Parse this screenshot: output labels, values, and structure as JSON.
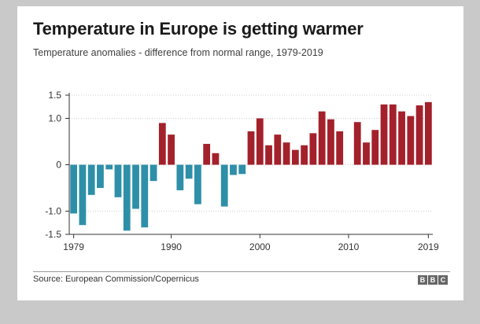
{
  "title": "Temperature in Europe is getting warmer",
  "subtitle": "Temperature anomalies - difference from normal range, 1979-2019",
  "source": "Source: European Commission/Copernicus",
  "logo": [
    "B",
    "B",
    "C"
  ],
  "colors": {
    "positive": "#a3212b",
    "negative": "#2e8fa8",
    "axis": "#333333",
    "grid": "#cccccc",
    "background": "#c9c9c9"
  },
  "chart_data": {
    "type": "bar",
    "title": "Temperature in Europe is getting warmer",
    "xlabel": "",
    "ylabel": "",
    "ylim": [
      -1.5,
      1.5
    ],
    "grid": "horizontal",
    "y_ticks": [
      1.5,
      1.0,
      0,
      -1.0,
      -1.5
    ],
    "y_tick_labels": [
      "1.5",
      "1.0",
      "0",
      "-1.0",
      "-1.5"
    ],
    "x_ticks": [
      1979,
      1990,
      2000,
      2010,
      2019
    ],
    "x_tick_labels": [
      "1979",
      "1990",
      "2000",
      "2010",
      "2019"
    ],
    "categories": [
      1979,
      1980,
      1981,
      1982,
      1983,
      1984,
      1985,
      1986,
      1987,
      1988,
      1989,
      1990,
      1991,
      1992,
      1993,
      1994,
      1995,
      1996,
      1997,
      1998,
      1999,
      2000,
      2001,
      2002,
      2003,
      2004,
      2005,
      2006,
      2007,
      2008,
      2009,
      2010,
      2011,
      2012,
      2013,
      2014,
      2015,
      2016,
      2017,
      2018,
      2019
    ],
    "values": [
      -1.05,
      -1.3,
      -0.65,
      -0.5,
      -0.1,
      -0.7,
      -1.42,
      -0.95,
      -1.35,
      -0.35,
      0.9,
      0.65,
      -0.55,
      -0.3,
      -0.85,
      0.45,
      0.25,
      -0.9,
      -0.22,
      -0.2,
      0.72,
      1.0,
      0.42,
      0.65,
      0.48,
      0.32,
      0.42,
      0.68,
      1.15,
      0.98,
      0.72,
      0.0,
      0.92,
      0.48,
      0.75,
      1.3,
      1.3,
      1.15,
      1.05,
      1.28,
      1.35
    ]
  }
}
